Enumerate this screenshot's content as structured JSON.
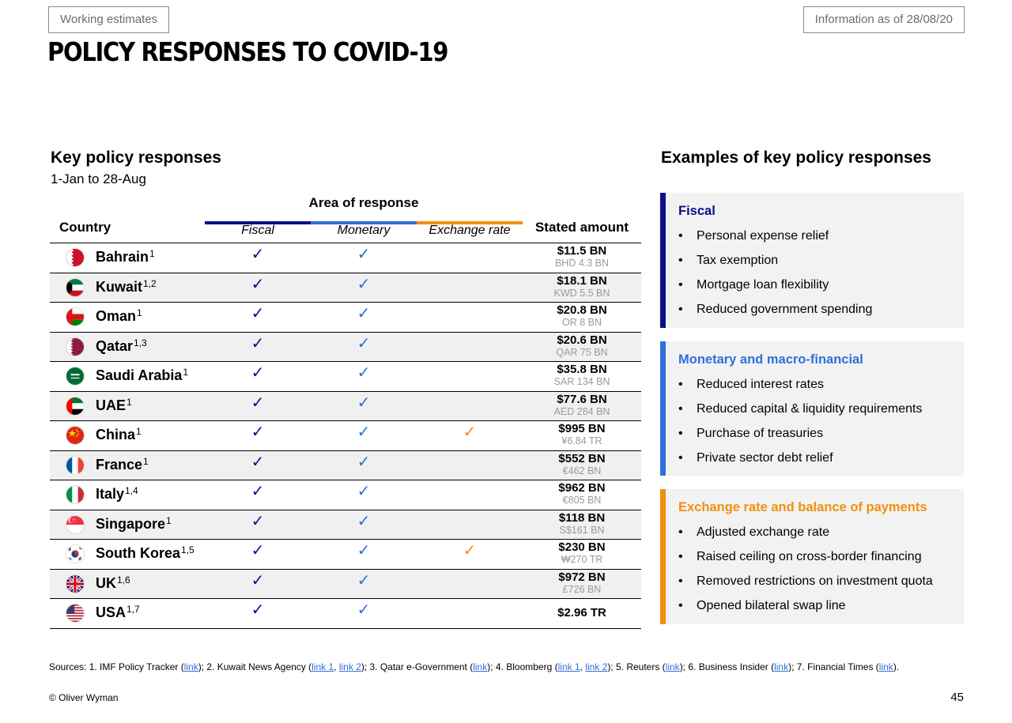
{
  "header": {
    "tag_left": "Working estimates",
    "tag_right": "Information as of 28/08/20",
    "title": "POLICY RESPONSES TO COVID-19"
  },
  "left": {
    "heading": "Key policy responses",
    "subheading": "1-Jan to 28-Aug",
    "area_title": "Area of response",
    "columns": {
      "country": "Country",
      "fiscal": "Fiscal",
      "monetary": "Monetary",
      "fx": "Exchange rate",
      "amount": "Stated amount"
    },
    "check_symbol": "✓",
    "colors": {
      "fiscal": "#0c0f8a",
      "monetary": "#2f6fdc",
      "fx": "#f0900f"
    },
    "rows": [
      {
        "country": "Bahrain",
        "sup": "1",
        "flag": "bahrain-flag-icon",
        "fiscal": true,
        "monetary": true,
        "fx": false,
        "amount": "$11.5 BN",
        "local": "BHD 4.3 BN"
      },
      {
        "country": "Kuwait",
        "sup": "1,2",
        "flag": "kuwait-flag-icon",
        "fiscal": true,
        "monetary": true,
        "fx": false,
        "amount": "$18.1 BN",
        "local": "KWD 5.5 BN"
      },
      {
        "country": "Oman",
        "sup": "1",
        "flag": "oman-flag-icon",
        "fiscal": true,
        "monetary": true,
        "fx": false,
        "amount": "$20.8 BN",
        "local": "OR 8 BN"
      },
      {
        "country": "Qatar",
        "sup": "1,3",
        "flag": "qatar-flag-icon",
        "fiscal": true,
        "monetary": true,
        "fx": false,
        "amount": "$20.6 BN",
        "local": "QAR 75 BN"
      },
      {
        "country": "Saudi Arabia",
        "sup": "1",
        "flag": "saudi-arabia-flag-icon",
        "fiscal": true,
        "monetary": true,
        "fx": false,
        "amount": "$35.8 BN",
        "local": "SAR 134 BN"
      },
      {
        "country": "UAE",
        "sup": "1",
        "flag": "uae-flag-icon",
        "fiscal": true,
        "monetary": true,
        "fx": false,
        "amount": "$77.6 BN",
        "local": "AED 284 BN"
      },
      {
        "country": "China",
        "sup": "1",
        "flag": "china-flag-icon",
        "fiscal": true,
        "monetary": true,
        "fx": true,
        "amount": "$995 BN",
        "local": "¥6.84 TR"
      },
      {
        "country": "France",
        "sup": "1",
        "flag": "france-flag-icon",
        "fiscal": true,
        "monetary": true,
        "fx": false,
        "amount": "$552 BN",
        "local": "€462 BN"
      },
      {
        "country": "Italy",
        "sup": "1,4",
        "flag": "italy-flag-icon",
        "fiscal": true,
        "monetary": true,
        "fx": false,
        "amount": "$962 BN",
        "local": "€805 BN"
      },
      {
        "country": "Singapore",
        "sup": "1",
        "flag": "singapore-flag-icon",
        "fiscal": true,
        "monetary": true,
        "fx": false,
        "amount": "$118 BN",
        "local": "S$161 BN"
      },
      {
        "country": "South Korea",
        "sup": "1,5",
        "flag": "south-korea-flag-icon",
        "fiscal": true,
        "monetary": true,
        "fx": true,
        "amount": "$230 BN",
        "local": "₩270 TR"
      },
      {
        "country": "UK",
        "sup": "1,6",
        "flag": "uk-flag-icon",
        "fiscal": true,
        "monetary": true,
        "fx": false,
        "amount": "$972 BN",
        "local": "£726 BN"
      },
      {
        "country": "USA",
        "sup": "1,7",
        "flag": "usa-flag-icon",
        "fiscal": true,
        "monetary": true,
        "fx": false,
        "amount": "$2.96 TR",
        "local": ""
      }
    ]
  },
  "right": {
    "heading": "Examples of key policy responses",
    "panels": [
      {
        "id": "fiscal",
        "title": "Fiscal",
        "color": "#0c0f8a",
        "items": [
          "Personal expense relief",
          "Tax exemption",
          "Mortgage loan flexibility",
          "Reduced government spending"
        ]
      },
      {
        "id": "monetary",
        "title": "Monetary and macro-financial",
        "color": "#2f6fdc",
        "items": [
          "Reduced interest rates",
          "Reduced capital & liquidity requirements",
          "Purchase of treasuries",
          "Private sector debt relief"
        ]
      },
      {
        "id": "fx",
        "title": "Exchange rate and balance of payments",
        "color": "#f0900f",
        "items": [
          "Adjusted exchange rate",
          "Raised ceiling on cross-border financing",
          "Removed restrictions on investment quota",
          "Opened bilateral swap line"
        ]
      }
    ]
  },
  "footer": {
    "sources": [
      {
        "t": "Sources: 1. IMF Policy Tracker ("
      },
      {
        "t": "link",
        "link": true
      },
      {
        "t": "); 2. Kuwait News Agency ("
      },
      {
        "t": "link 1",
        "link": true
      },
      {
        "t": ", "
      },
      {
        "t": "link 2",
        "link": true
      },
      {
        "t": "); 3. Qatar e-Government ("
      },
      {
        "t": "link",
        "link": true
      },
      {
        "t": "); 4. Bloomberg ("
      },
      {
        "t": "link 1",
        "link": true
      },
      {
        "t": ", "
      },
      {
        "t": "link 2",
        "link": true
      },
      {
        "t": "); 5. Reuters ("
      },
      {
        "t": "link",
        "link": true
      },
      {
        "t": "); 6. Business Insider ("
      },
      {
        "t": "link",
        "link": true
      },
      {
        "t": "); 7. Financial Times ("
      },
      {
        "t": "link",
        "link": true
      },
      {
        "t": ")."
      }
    ],
    "copyright": "© Oliver Wyman",
    "page_number": "45"
  }
}
